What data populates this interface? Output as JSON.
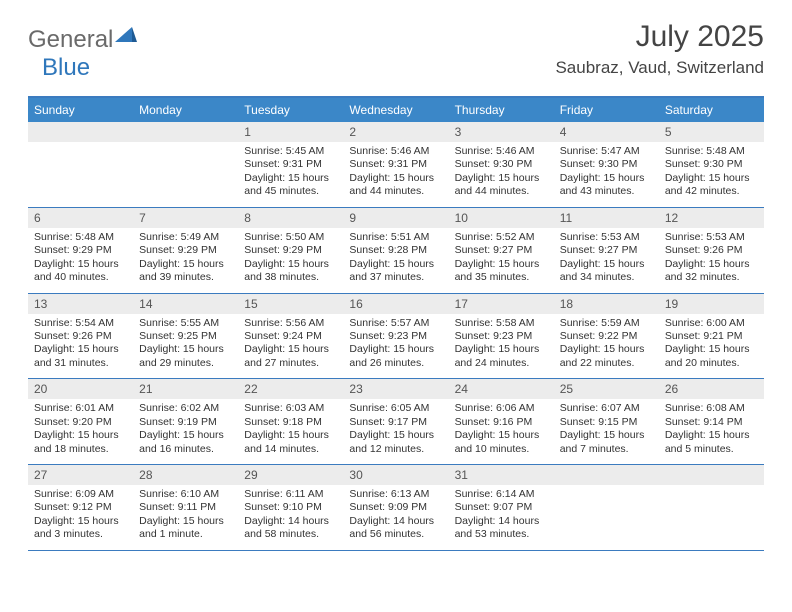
{
  "brand": {
    "general": "General",
    "blue": "Blue"
  },
  "title": {
    "month": "July 2025",
    "location": "Saubraz, Vaud, Switzerland"
  },
  "colors": {
    "header_bar": "#3b87c8",
    "rule": "#3b7bbf",
    "daynum_bg": "#ececec"
  },
  "day_headers": [
    "Sunday",
    "Monday",
    "Tuesday",
    "Wednesday",
    "Thursday",
    "Friday",
    "Saturday"
  ],
  "weeks": [
    [
      {
        "num": "",
        "sunrise": "",
        "sunset": "",
        "daylight": ""
      },
      {
        "num": "",
        "sunrise": "",
        "sunset": "",
        "daylight": ""
      },
      {
        "num": "1",
        "sunrise": "Sunrise: 5:45 AM",
        "sunset": "Sunset: 9:31 PM",
        "daylight": "Daylight: 15 hours and 45 minutes."
      },
      {
        "num": "2",
        "sunrise": "Sunrise: 5:46 AM",
        "sunset": "Sunset: 9:31 PM",
        "daylight": "Daylight: 15 hours and 44 minutes."
      },
      {
        "num": "3",
        "sunrise": "Sunrise: 5:46 AM",
        "sunset": "Sunset: 9:30 PM",
        "daylight": "Daylight: 15 hours and 44 minutes."
      },
      {
        "num": "4",
        "sunrise": "Sunrise: 5:47 AM",
        "sunset": "Sunset: 9:30 PM",
        "daylight": "Daylight: 15 hours and 43 minutes."
      },
      {
        "num": "5",
        "sunrise": "Sunrise: 5:48 AM",
        "sunset": "Sunset: 9:30 PM",
        "daylight": "Daylight: 15 hours and 42 minutes."
      }
    ],
    [
      {
        "num": "6",
        "sunrise": "Sunrise: 5:48 AM",
        "sunset": "Sunset: 9:29 PM",
        "daylight": "Daylight: 15 hours and 40 minutes."
      },
      {
        "num": "7",
        "sunrise": "Sunrise: 5:49 AM",
        "sunset": "Sunset: 9:29 PM",
        "daylight": "Daylight: 15 hours and 39 minutes."
      },
      {
        "num": "8",
        "sunrise": "Sunrise: 5:50 AM",
        "sunset": "Sunset: 9:29 PM",
        "daylight": "Daylight: 15 hours and 38 minutes."
      },
      {
        "num": "9",
        "sunrise": "Sunrise: 5:51 AM",
        "sunset": "Sunset: 9:28 PM",
        "daylight": "Daylight: 15 hours and 37 minutes."
      },
      {
        "num": "10",
        "sunrise": "Sunrise: 5:52 AM",
        "sunset": "Sunset: 9:27 PM",
        "daylight": "Daylight: 15 hours and 35 minutes."
      },
      {
        "num": "11",
        "sunrise": "Sunrise: 5:53 AM",
        "sunset": "Sunset: 9:27 PM",
        "daylight": "Daylight: 15 hours and 34 minutes."
      },
      {
        "num": "12",
        "sunrise": "Sunrise: 5:53 AM",
        "sunset": "Sunset: 9:26 PM",
        "daylight": "Daylight: 15 hours and 32 minutes."
      }
    ],
    [
      {
        "num": "13",
        "sunrise": "Sunrise: 5:54 AM",
        "sunset": "Sunset: 9:26 PM",
        "daylight": "Daylight: 15 hours and 31 minutes."
      },
      {
        "num": "14",
        "sunrise": "Sunrise: 5:55 AM",
        "sunset": "Sunset: 9:25 PM",
        "daylight": "Daylight: 15 hours and 29 minutes."
      },
      {
        "num": "15",
        "sunrise": "Sunrise: 5:56 AM",
        "sunset": "Sunset: 9:24 PM",
        "daylight": "Daylight: 15 hours and 27 minutes."
      },
      {
        "num": "16",
        "sunrise": "Sunrise: 5:57 AM",
        "sunset": "Sunset: 9:23 PM",
        "daylight": "Daylight: 15 hours and 26 minutes."
      },
      {
        "num": "17",
        "sunrise": "Sunrise: 5:58 AM",
        "sunset": "Sunset: 9:23 PM",
        "daylight": "Daylight: 15 hours and 24 minutes."
      },
      {
        "num": "18",
        "sunrise": "Sunrise: 5:59 AM",
        "sunset": "Sunset: 9:22 PM",
        "daylight": "Daylight: 15 hours and 22 minutes."
      },
      {
        "num": "19",
        "sunrise": "Sunrise: 6:00 AM",
        "sunset": "Sunset: 9:21 PM",
        "daylight": "Daylight: 15 hours and 20 minutes."
      }
    ],
    [
      {
        "num": "20",
        "sunrise": "Sunrise: 6:01 AM",
        "sunset": "Sunset: 9:20 PM",
        "daylight": "Daylight: 15 hours and 18 minutes."
      },
      {
        "num": "21",
        "sunrise": "Sunrise: 6:02 AM",
        "sunset": "Sunset: 9:19 PM",
        "daylight": "Daylight: 15 hours and 16 minutes."
      },
      {
        "num": "22",
        "sunrise": "Sunrise: 6:03 AM",
        "sunset": "Sunset: 9:18 PM",
        "daylight": "Daylight: 15 hours and 14 minutes."
      },
      {
        "num": "23",
        "sunrise": "Sunrise: 6:05 AM",
        "sunset": "Sunset: 9:17 PM",
        "daylight": "Daylight: 15 hours and 12 minutes."
      },
      {
        "num": "24",
        "sunrise": "Sunrise: 6:06 AM",
        "sunset": "Sunset: 9:16 PM",
        "daylight": "Daylight: 15 hours and 10 minutes."
      },
      {
        "num": "25",
        "sunrise": "Sunrise: 6:07 AM",
        "sunset": "Sunset: 9:15 PM",
        "daylight": "Daylight: 15 hours and 7 minutes."
      },
      {
        "num": "26",
        "sunrise": "Sunrise: 6:08 AM",
        "sunset": "Sunset: 9:14 PM",
        "daylight": "Daylight: 15 hours and 5 minutes."
      }
    ],
    [
      {
        "num": "27",
        "sunrise": "Sunrise: 6:09 AM",
        "sunset": "Sunset: 9:12 PM",
        "daylight": "Daylight: 15 hours and 3 minutes."
      },
      {
        "num": "28",
        "sunrise": "Sunrise: 6:10 AM",
        "sunset": "Sunset: 9:11 PM",
        "daylight": "Daylight: 15 hours and 1 minute."
      },
      {
        "num": "29",
        "sunrise": "Sunrise: 6:11 AM",
        "sunset": "Sunset: 9:10 PM",
        "daylight": "Daylight: 14 hours and 58 minutes."
      },
      {
        "num": "30",
        "sunrise": "Sunrise: 6:13 AM",
        "sunset": "Sunset: 9:09 PM",
        "daylight": "Daylight: 14 hours and 56 minutes."
      },
      {
        "num": "31",
        "sunrise": "Sunrise: 6:14 AM",
        "sunset": "Sunset: 9:07 PM",
        "daylight": "Daylight: 14 hours and 53 minutes."
      },
      {
        "num": "",
        "sunrise": "",
        "sunset": "",
        "daylight": ""
      },
      {
        "num": "",
        "sunrise": "",
        "sunset": "",
        "daylight": ""
      }
    ]
  ]
}
